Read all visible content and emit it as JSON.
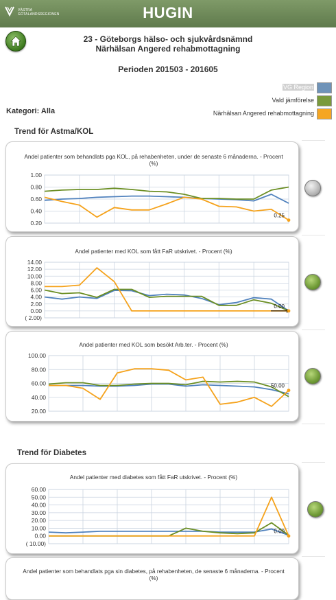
{
  "header": {
    "title": "HUGIN",
    "logo_text_1": "VÄSTRA",
    "logo_text_2": "GÖTALANDSREGIONEN"
  },
  "org_line_1": "23 - Göteborgs hälso- och sjukvårdsnämnd",
  "org_line_2": "Närhälsan Angered rehabmottagning",
  "period": "Perioden 201503 - 201605",
  "category": "Kategori: Alla",
  "legend": [
    {
      "label": "VG Region",
      "color": "#6f93b8"
    },
    {
      "label": "Vald jämförelse",
      "color": "#7a9a3c"
    },
    {
      "label": "Närhälsan Angered rehabmottagning",
      "color": "#f5a623"
    }
  ],
  "sections": {
    "astma_kol": "Trend för Astma/KOL",
    "diabetes": "Trend för Diabetes"
  },
  "colors": {
    "blue": "#4f81bd",
    "green": "#6b8e23",
    "orange": "#f5a21b"
  },
  "chart_data": [
    {
      "type": "line",
      "title": "Andel patienter som behandlats pga KOL, på rehabenheten, under de senaste 6 månaderna. - Procent (%)",
      "ylim": [
        0.2,
        1.0
      ],
      "ticks": [
        "1.00",
        "0.80",
        "0.60",
        "0.40",
        "0.20"
      ],
      "tick_values": [
        1.0,
        0.8,
        0.6,
        0.4,
        0.2
      ],
      "grid": true,
      "status": "grey",
      "end_label": "0.25",
      "series": [
        {
          "name": "VG Region",
          "color": "#4f81bd",
          "values": [
            0.58,
            0.6,
            0.61,
            0.63,
            0.64,
            0.65,
            0.65,
            0.64,
            0.63,
            0.61,
            0.6,
            0.59,
            0.57,
            0.68,
            0.53
          ]
        },
        {
          "name": "Vald jämförelse",
          "color": "#6b8e23",
          "values": [
            0.73,
            0.75,
            0.76,
            0.76,
            0.78,
            0.76,
            0.73,
            0.72,
            0.68,
            0.61,
            0.61,
            0.6,
            0.6,
            0.75,
            0.8
          ]
        },
        {
          "name": "Närhälsan Angered rehabmottagning",
          "color": "#f5a21b",
          "values": [
            0.63,
            0.56,
            0.5,
            0.3,
            0.46,
            0.42,
            0.42,
            0.52,
            0.63,
            0.6,
            0.48,
            0.47,
            0.4,
            0.43,
            0.25
          ]
        }
      ]
    },
    {
      "type": "line",
      "title": "Andel patienter med KOL som fått FaR utskrivet. - Procent (%)",
      "ylim": [
        -2.0,
        14.0
      ],
      "ticks": [
        "14.00",
        "12.00",
        "10.00",
        "8.00",
        "6.00",
        "4.00",
        "2.00",
        "0.00",
        "( 2.00)"
      ],
      "tick_values": [
        14,
        12,
        10,
        8,
        6,
        4,
        2,
        0,
        -2
      ],
      "grid": true,
      "status": "green",
      "end_label": "0.00",
      "series": [
        {
          "name": "VG Region",
          "color": "#4f81bd",
          "values": [
            4.0,
            3.4,
            4.0,
            3.6,
            5.9,
            5.8,
            4.4,
            4.8,
            4.6,
            3.6,
            1.8,
            2.4,
            3.8,
            3.4,
            0.0
          ]
        },
        {
          "name": "Vald jämförelse",
          "color": "#6b8e23",
          "values": [
            6.0,
            5.0,
            5.2,
            3.9,
            6.2,
            6.2,
            3.9,
            4.2,
            4.2,
            4.2,
            1.6,
            1.6,
            3.2,
            2.2,
            0.0
          ]
        },
        {
          "name": "Närhälsan Angered rehabmottagning",
          "color": "#f5a21b",
          "values": [
            7.0,
            7.0,
            7.4,
            12.4,
            8.4,
            0.0,
            0.0,
            0.0,
            0.0,
            0.0,
            0.0,
            0.0,
            0.0,
            0.0,
            0.0
          ]
        }
      ]
    },
    {
      "type": "line",
      "title": "Andel patienter med KOL som besökt Arb.ter. - Procent (%)",
      "ylim": [
        20.0,
        100.0
      ],
      "ticks": [
        "100.00",
        "80.00",
        "60.00",
        "40.00",
        "20.00"
      ],
      "tick_values": [
        100,
        80,
        60,
        40,
        20
      ],
      "grid": true,
      "status": "green",
      "end_label": "50.00",
      "series": [
        {
          "name": "VG Region",
          "color": "#4f81bd",
          "values": [
            57,
            57,
            57,
            56,
            56,
            57,
            59,
            59,
            56,
            58,
            57,
            56,
            55,
            51,
            45
          ]
        },
        {
          "name": "Vald jämförelse",
          "color": "#6b8e23",
          "values": [
            59,
            61,
            61,
            57,
            57,
            59,
            60,
            60,
            58,
            63,
            62,
            63,
            62,
            55,
            41
          ]
        },
        {
          "name": "Närhälsan Angered rehabmottagning",
          "color": "#f5a21b",
          "values": [
            57,
            57,
            53,
            37,
            75,
            81,
            81,
            79,
            65,
            69,
            30,
            33,
            40,
            27,
            50
          ]
        }
      ]
    },
    {
      "type": "line",
      "title": "Andel patienter med diabetes som fått FaR utskrivet. - Procent (%)",
      "ylim": [
        -10.0,
        60.0
      ],
      "ticks": [
        "60.00",
        "50.00",
        "40.00",
        "30.00",
        "20.00",
        "10.00",
        "0.00",
        "( 10.00)"
      ],
      "tick_values": [
        60,
        50,
        40,
        30,
        20,
        10,
        0,
        -10
      ],
      "grid": true,
      "status": "green",
      "end_label": "0.00",
      "series": [
        {
          "name": "VG Region",
          "color": "#4f81bd",
          "values": [
            5,
            4,
            5,
            6,
            6,
            6,
            6,
            6,
            6,
            6,
            5,
            5,
            5,
            9,
            1
          ]
        },
        {
          "name": "Vald jämförelse",
          "color": "#6b8e23",
          "values": [
            0,
            0,
            0,
            0,
            0,
            0,
            0,
            0,
            10,
            6,
            4,
            3,
            4,
            17,
            1
          ]
        },
        {
          "name": "Närhälsan Angered rehabmottagning",
          "color": "#f5a21b",
          "values": [
            0,
            0,
            0,
            0,
            0,
            0,
            0,
            0,
            0,
            0,
            0,
            0,
            0,
            50,
            0
          ]
        }
      ]
    },
    {
      "type": "line",
      "title": "Andel patienter som behandlats pga sin diabetes, på rehabenheten, de senaste 6 månaderna. - Procent (%)",
      "series": []
    }
  ]
}
